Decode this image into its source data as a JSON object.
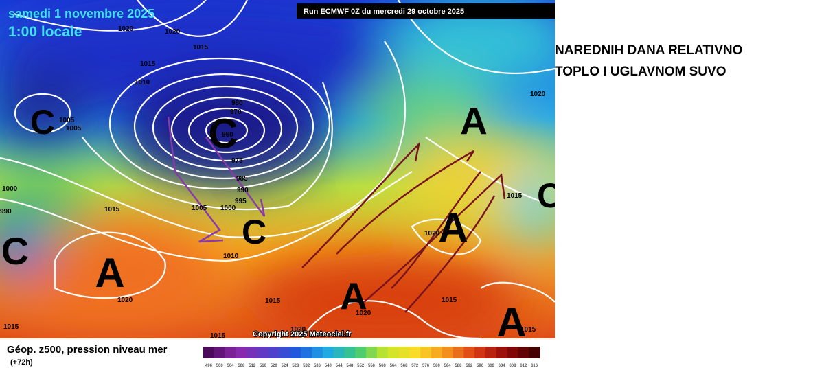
{
  "header": {
    "date": "samedi 1 novembre 2025",
    "time": "1:00 locale",
    "run": "Run ECMWF 0Z du mercredi 29 octobre 2025"
  },
  "caption": {
    "lines": [
      "NAREDNIH DANA RELATIVNO",
      "TOPLO I UGLAVNOM SUVO"
    ]
  },
  "footer": {
    "title": "Géop. z500, pression niveau mer",
    "lead": "(+72h)",
    "copyright": "Copyright 2025 Meteociel.fr"
  },
  "legend": {
    "levels": [
      496,
      500,
      504,
      508,
      512,
      516,
      520,
      524,
      528,
      532,
      536,
      540,
      544,
      548,
      552,
      556,
      560,
      564,
      568,
      572,
      576,
      580,
      584,
      588,
      592,
      596,
      600,
      604,
      608,
      612,
      616
    ]
  },
  "map": {
    "centers": [
      "C",
      "C",
      "C",
      "C",
      "C",
      "A",
      "A",
      "A",
      "A",
      "A"
    ],
    "isobar_labels": [
      "1020",
      "1020",
      "1015",
      "1015",
      "1010",
      "1005",
      "1005",
      "980",
      "970",
      "960",
      "975",
      "985",
      "990",
      "995",
      "1005",
      "1000",
      "1015",
      "1010",
      "1000",
      "990",
      "1015",
      "1020",
      "1020",
      "1015",
      "1020",
      "1015",
      "1015",
      "1020",
      "1015",
      "1015",
      "1020"
    ]
  }
}
